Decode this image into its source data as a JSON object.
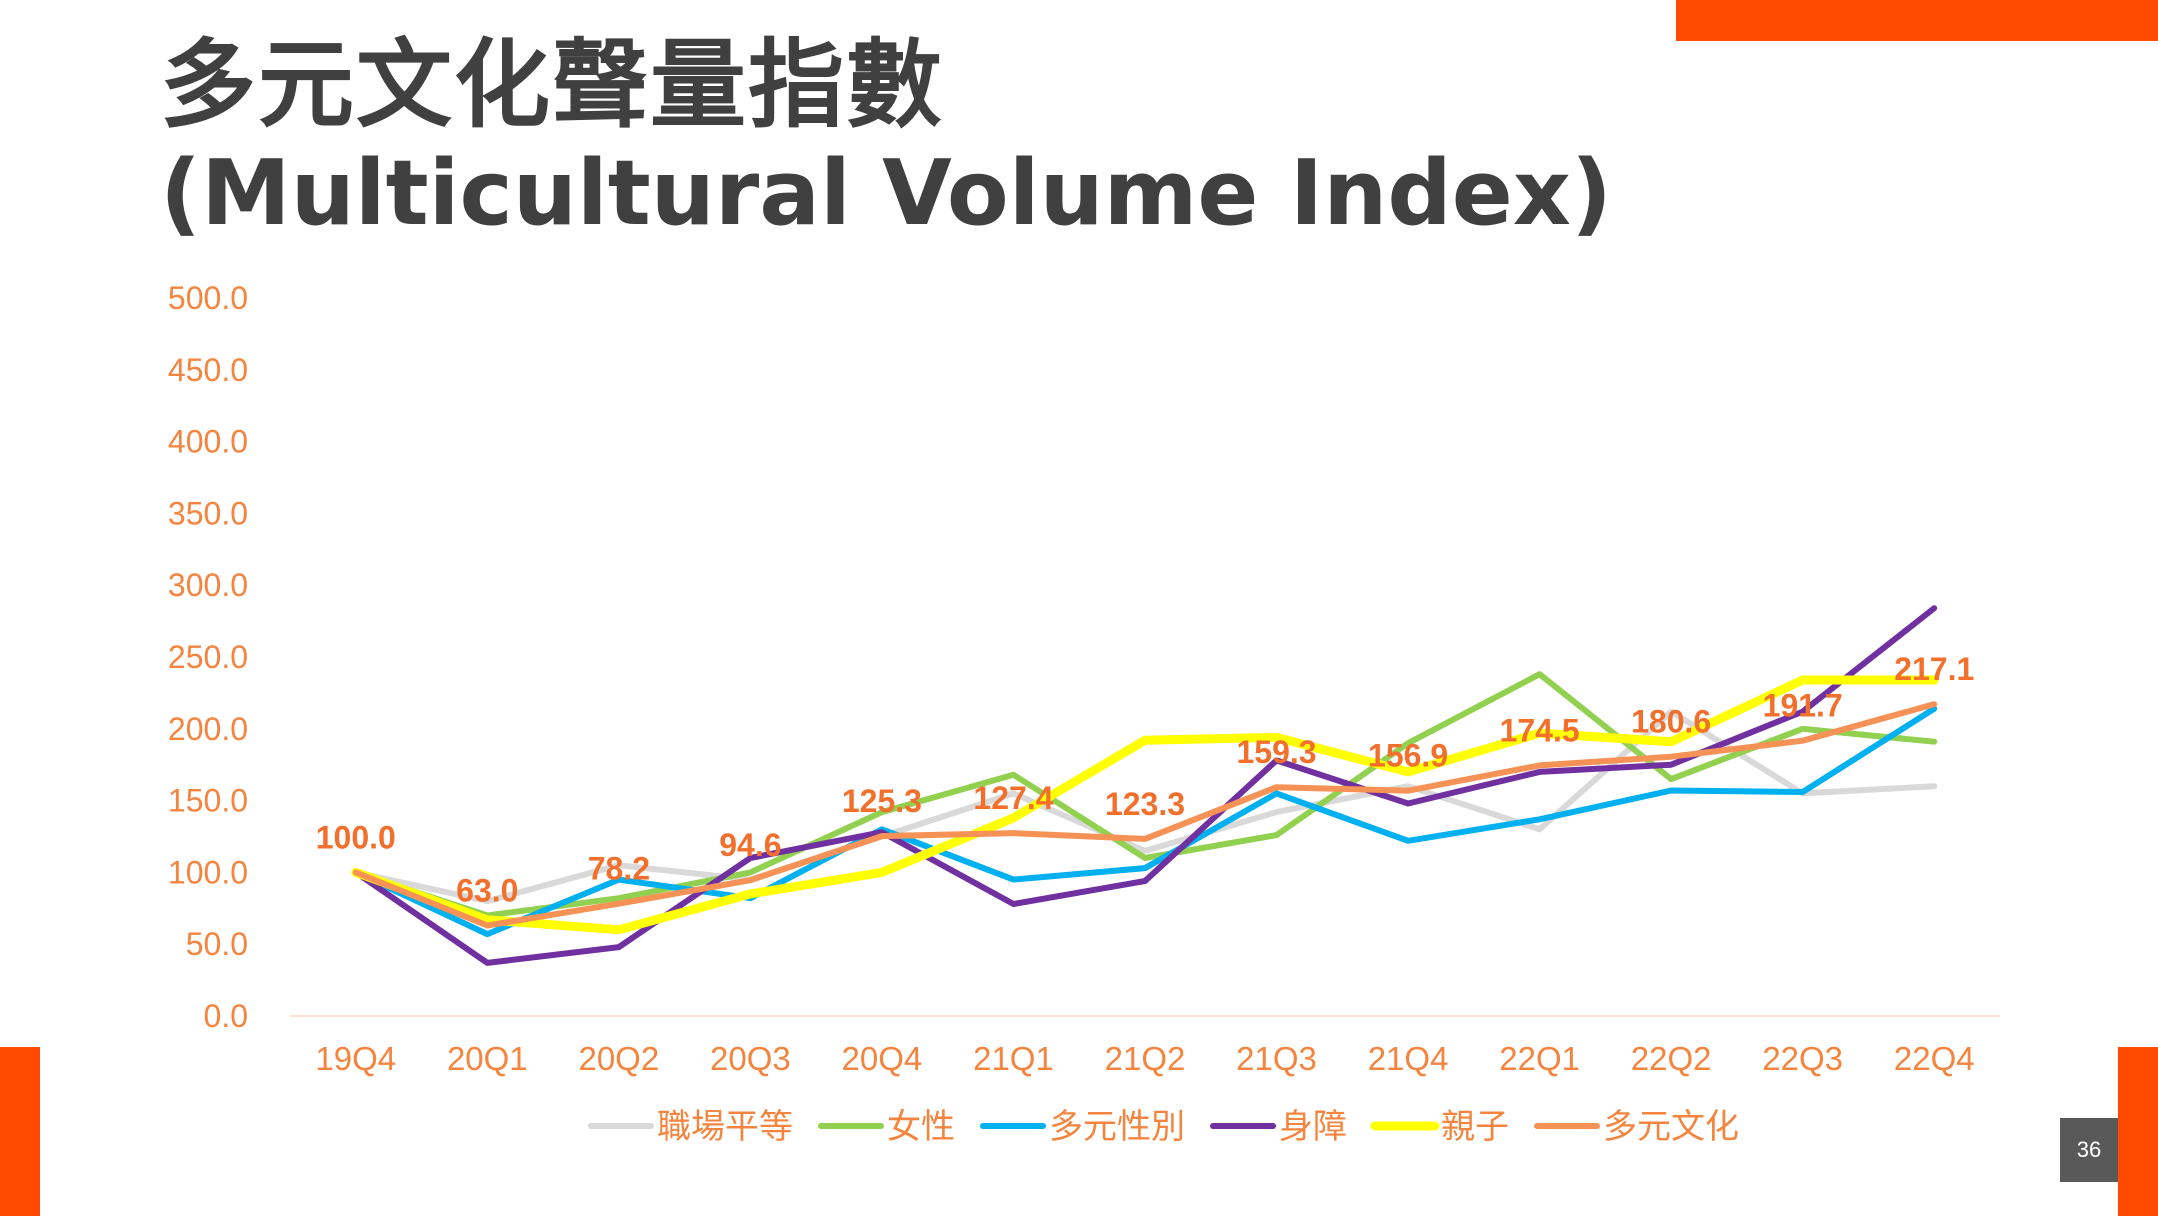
{
  "slide": {
    "title_zh": "多元文化聲量指數",
    "title_en": "(Multicultural Volume Index)",
    "page_number": "36"
  },
  "colors": {
    "accent": "#FF4A00",
    "axis_text": "#F4843E",
    "data_label": "#F26F2C",
    "title": "#404040"
  },
  "chart_data": {
    "type": "line",
    "categories": [
      "19Q4",
      "20Q1",
      "20Q2",
      "20Q3",
      "20Q4",
      "21Q1",
      "21Q2",
      "21Q3",
      "21Q4",
      "22Q1",
      "22Q2",
      "22Q3",
      "22Q4"
    ],
    "ylim": [
      0,
      500
    ],
    "yticks": [
      0,
      50,
      100,
      150,
      200,
      250,
      300,
      350,
      400,
      450,
      500
    ],
    "ytick_labels": [
      "0.0",
      "50.0",
      "100.0",
      "150.0",
      "200.0",
      "250.0",
      "300.0",
      "350.0",
      "400.0",
      "450.0",
      "500.0"
    ],
    "grid": false,
    "legend_position": "bottom",
    "series": [
      {
        "name": "職場平等",
        "color": "#D9D9D9",
        "values": [
          100,
          80,
          105,
          95,
          125,
          155,
          115,
          142,
          160,
          130,
          212,
          155,
          160
        ]
      },
      {
        "name": "女性",
        "color": "#92D050",
        "values": [
          100,
          70,
          82,
          100,
          142,
          168,
          110,
          126,
          190,
          238,
          165,
          200,
          191
        ]
      },
      {
        "name": "多元性別",
        "color": "#00B0F0",
        "values": [
          100,
          57,
          95,
          82,
          130,
          95,
          103,
          155,
          122,
          137,
          157,
          156,
          214
        ]
      },
      {
        "name": "身障",
        "color": "#7030A0",
        "values": [
          100,
          37,
          48,
          110,
          128,
          78,
          94,
          178,
          148,
          170,
          175,
          212,
          284
        ]
      },
      {
        "name": "親子",
        "color": "#FFFF00",
        "values": [
          100,
          67,
          60,
          85,
          100,
          138,
          192,
          194,
          170,
          197,
          191,
          234,
          234
        ]
      },
      {
        "name": "多元文化",
        "color": "#F79256",
        "values": [
          100,
          63.0,
          78.2,
          94.6,
          125.3,
          127.4,
          123.3,
          159.3,
          156.9,
          174.5,
          180.6,
          191.7,
          217.1
        ]
      }
    ],
    "data_labels": [
      "100.0",
      "63.0",
      "78.2",
      "94.6",
      "125.3",
      "127.4",
      "123.3",
      "159.3",
      "156.9",
      "174.5",
      "180.6",
      "191.7",
      "217.1"
    ]
  }
}
